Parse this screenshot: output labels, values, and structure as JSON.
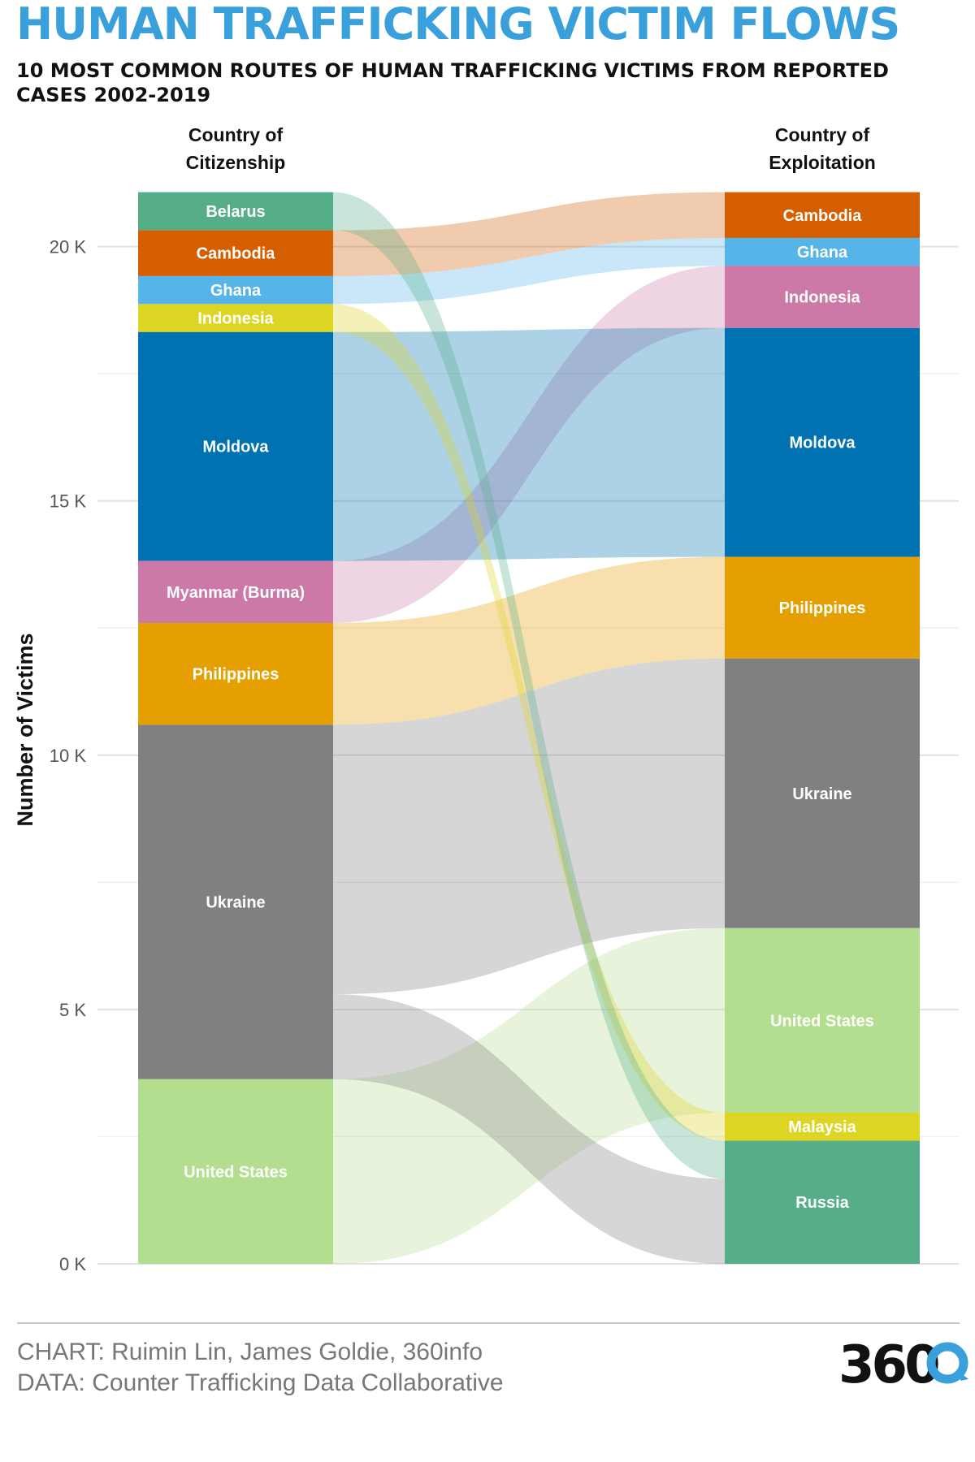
{
  "header": {
    "title": "HUMAN TRAFFICKING VICTIM FLOWS",
    "subtitle": "10 MOST COMMON ROUTES OF HUMAN TRAFFICKING VICTIMS FROM REPORTED CASES 2002-2019"
  },
  "footer": {
    "chart_credit": "CHART: Ruimin Lin, James Goldie, 360info",
    "data_credit": "DATA: Counter Trafficking Data Collaborative",
    "logo_text": "360"
  },
  "chart_data": {
    "type": "sankey",
    "ylabel": "Number of Victims",
    "yticks": [
      "0 K",
      "5 K",
      "10 K",
      "15 K",
      "20 K"
    ],
    "ytick_values": [
      0,
      5000,
      10000,
      15000,
      20000
    ],
    "ylim": [
      0,
      21000
    ],
    "grid": true,
    "column_headers": {
      "left": [
        "Country of",
        "Citizenship"
      ],
      "right": [
        "Country of",
        "Exploitation"
      ]
    },
    "source_nodes": [
      {
        "name": "Belarus",
        "value": 750,
        "color": "#56ae89"
      },
      {
        "name": "Cambodia",
        "value": 900,
        "color": "#d55e00"
      },
      {
        "name": "Ghana",
        "value": 550,
        "color": "#56b4e9"
      },
      {
        "name": "Indonesia",
        "value": 550,
        "color": "#ddd523"
      },
      {
        "name": "Moldova",
        "value": 4500,
        "color": "#0072b2"
      },
      {
        "name": "Myanmar (Burma)",
        "value": 1220,
        "color": "#cc79a7"
      },
      {
        "name": "Philippines",
        "value": 2000,
        "color": "#e69f00"
      },
      {
        "name": "Ukraine",
        "value": 6970,
        "color": "#808080"
      },
      {
        "name": "United States",
        "value": 3630,
        "color": "#b4de8f"
      }
    ],
    "target_nodes": [
      {
        "name": "Cambodia",
        "value": 900,
        "color": "#d55e00"
      },
      {
        "name": "Ghana",
        "value": 550,
        "color": "#56b4e9"
      },
      {
        "name": "Indonesia",
        "value": 1220,
        "color": "#cc79a7"
      },
      {
        "name": "Moldova",
        "value": 4500,
        "color": "#0072b2"
      },
      {
        "name": "Philippines",
        "value": 2000,
        "color": "#e69f00"
      },
      {
        "name": "Ukraine",
        "value": 5300,
        "color": "#808080"
      },
      {
        "name": "United States",
        "value": 3630,
        "color": "#b4de8f"
      },
      {
        "name": "Malaysia",
        "value": 550,
        "color": "#ddd523"
      },
      {
        "name": "Russia",
        "value": 2420,
        "color": "#56ae89"
      }
    ],
    "flows": [
      {
        "source": "Cambodia",
        "target": "Cambodia",
        "value": 900
      },
      {
        "source": "Ghana",
        "target": "Ghana",
        "value": 550
      },
      {
        "source": "Myanmar (Burma)",
        "target": "Indonesia",
        "value": 1220
      },
      {
        "source": "Moldova",
        "target": "Moldova",
        "value": 4500
      },
      {
        "source": "Philippines",
        "target": "Philippines",
        "value": 2000
      },
      {
        "source": "Ukraine",
        "target": "Ukraine",
        "value": 5300
      },
      {
        "source": "United States",
        "target": "United States",
        "value": 3630
      },
      {
        "source": "Indonesia",
        "target": "Malaysia",
        "value": 550
      },
      {
        "source": "Belarus",
        "target": "Russia",
        "value": 750
      },
      {
        "source": "Ukraine",
        "target": "Russia",
        "value": 1670
      }
    ]
  }
}
